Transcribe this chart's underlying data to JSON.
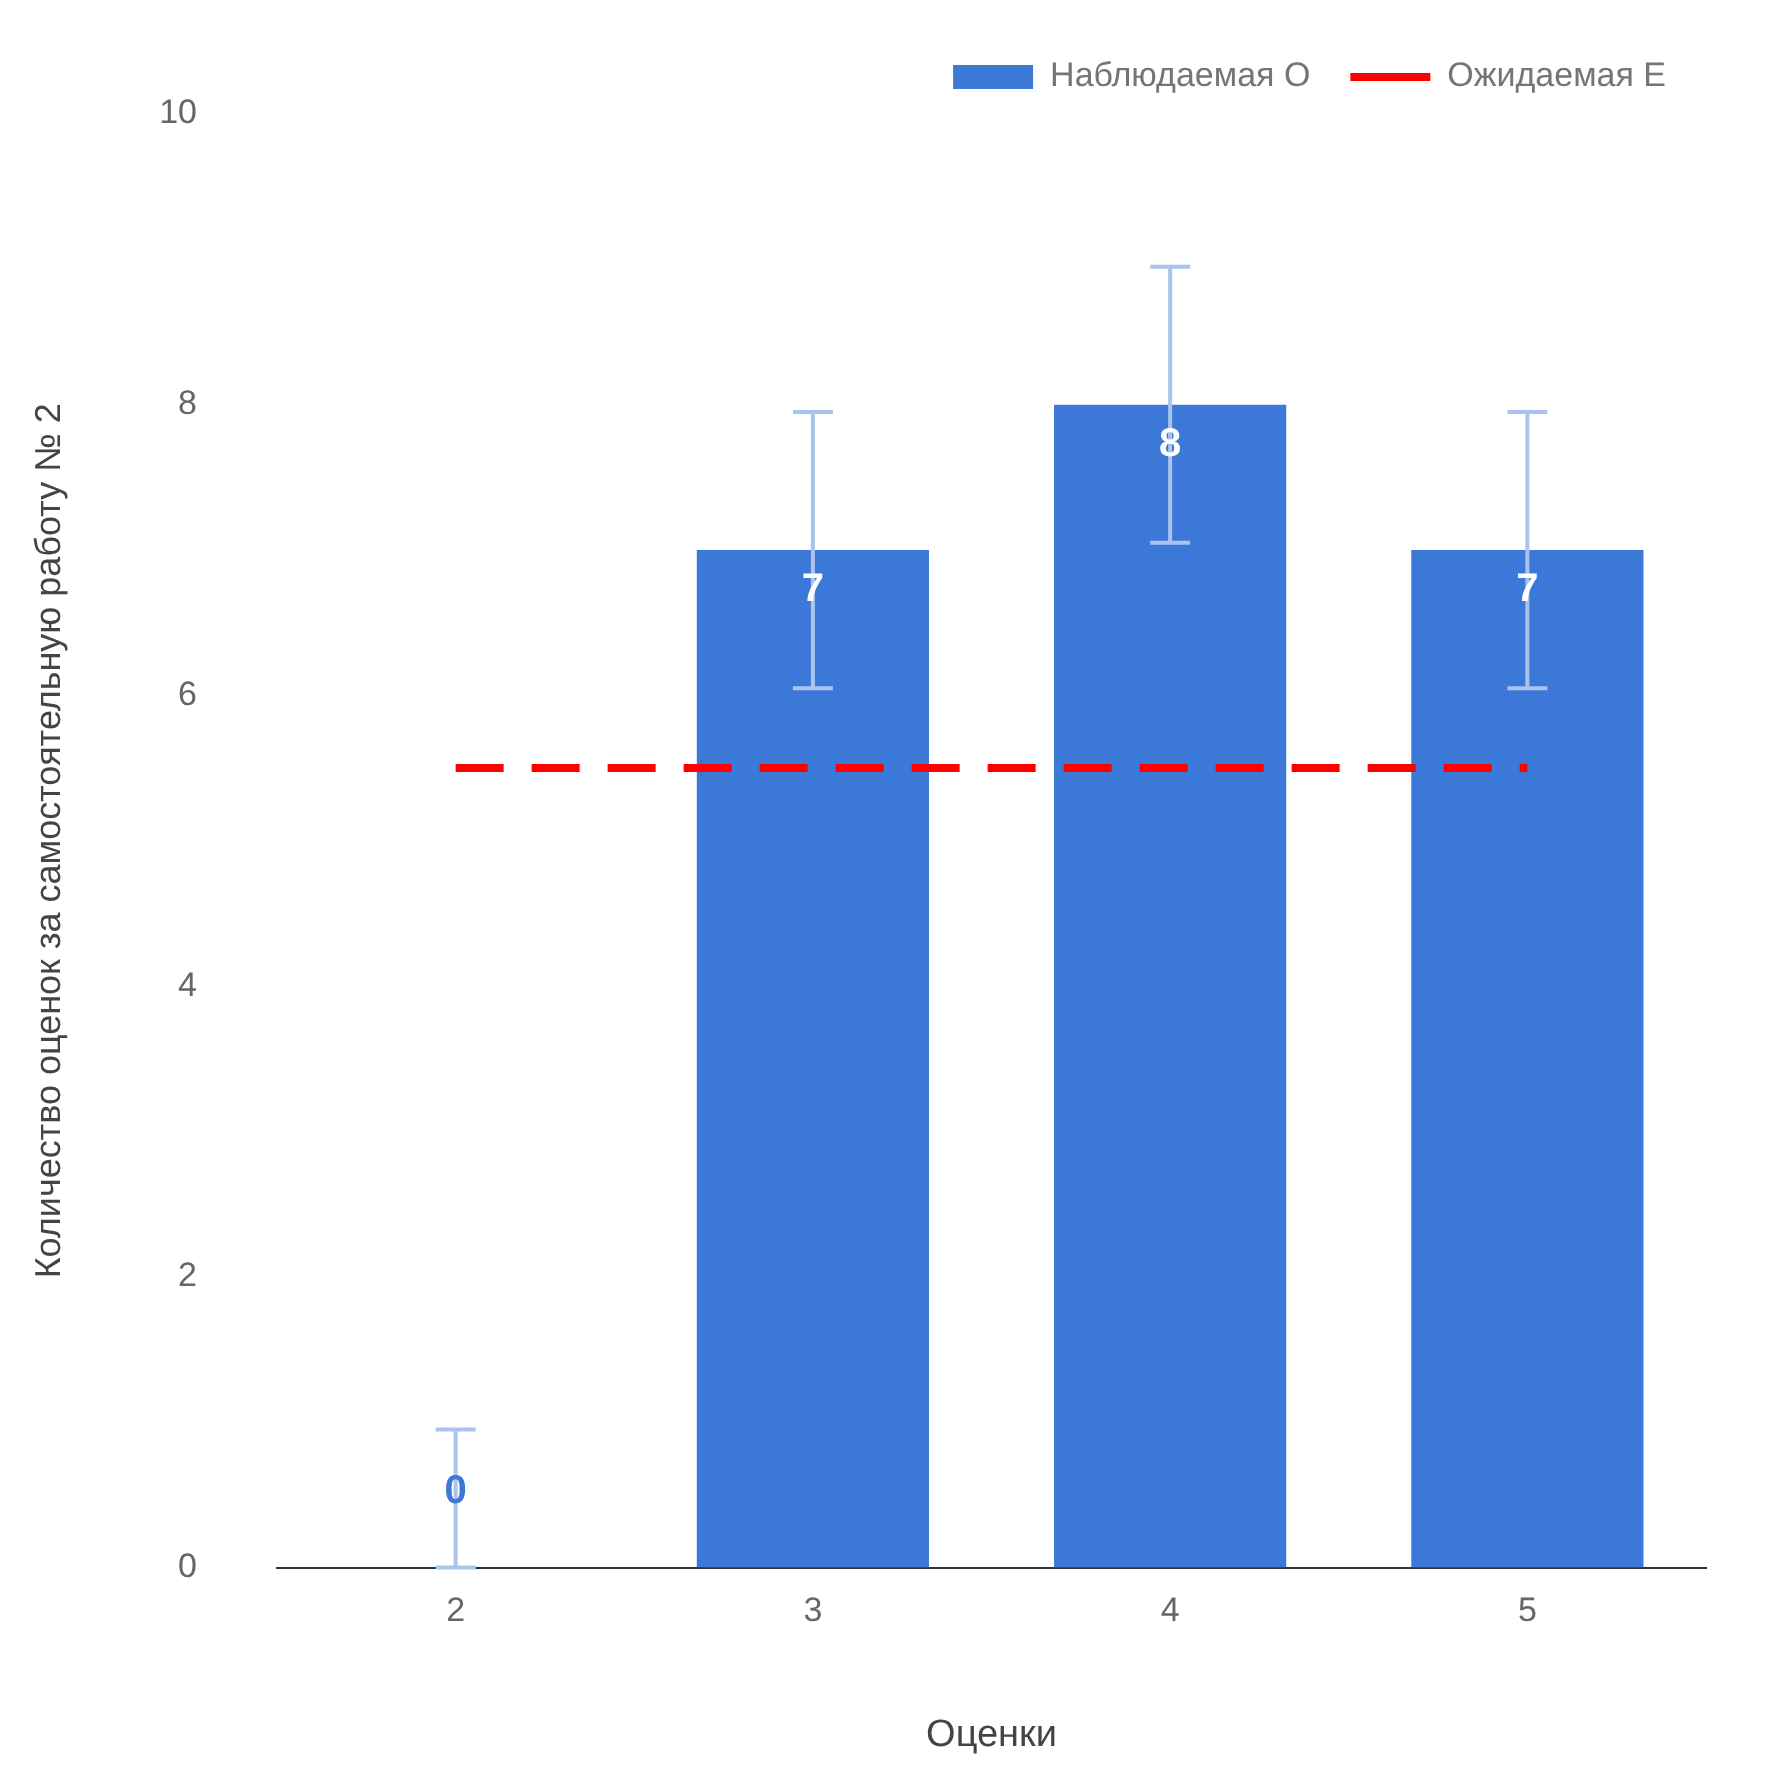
{
  "chart_data": {
    "type": "bar",
    "xlabel": "Оценки",
    "ylabel": "Количество оценок за самостоятельную работу № 2",
    "categories": [
      "2",
      "3",
      "4",
      "5"
    ],
    "series": [
      {
        "name": "Наблюдаемая O",
        "color": "#3c78d8",
        "values": [
          0,
          7,
          8,
          7
        ],
        "errors": [
          [
            0,
            0.95
          ],
          0.95,
          0.95,
          0.95
        ],
        "value_labels": [
          "0",
          "7",
          "8",
          "7"
        ]
      },
      {
        "name": "Ожидаемая E",
        "type": "line",
        "color": "#ff0000",
        "values": [
          5.5,
          5.5,
          5.5,
          5.5
        ],
        "line_style": "dashed",
        "marker": "none"
      }
    ],
    "ylim": [
      0,
      10
    ],
    "yticks": [
      0,
      2,
      4,
      6,
      8,
      10
    ],
    "grid": false,
    "legend": "top right"
  }
}
